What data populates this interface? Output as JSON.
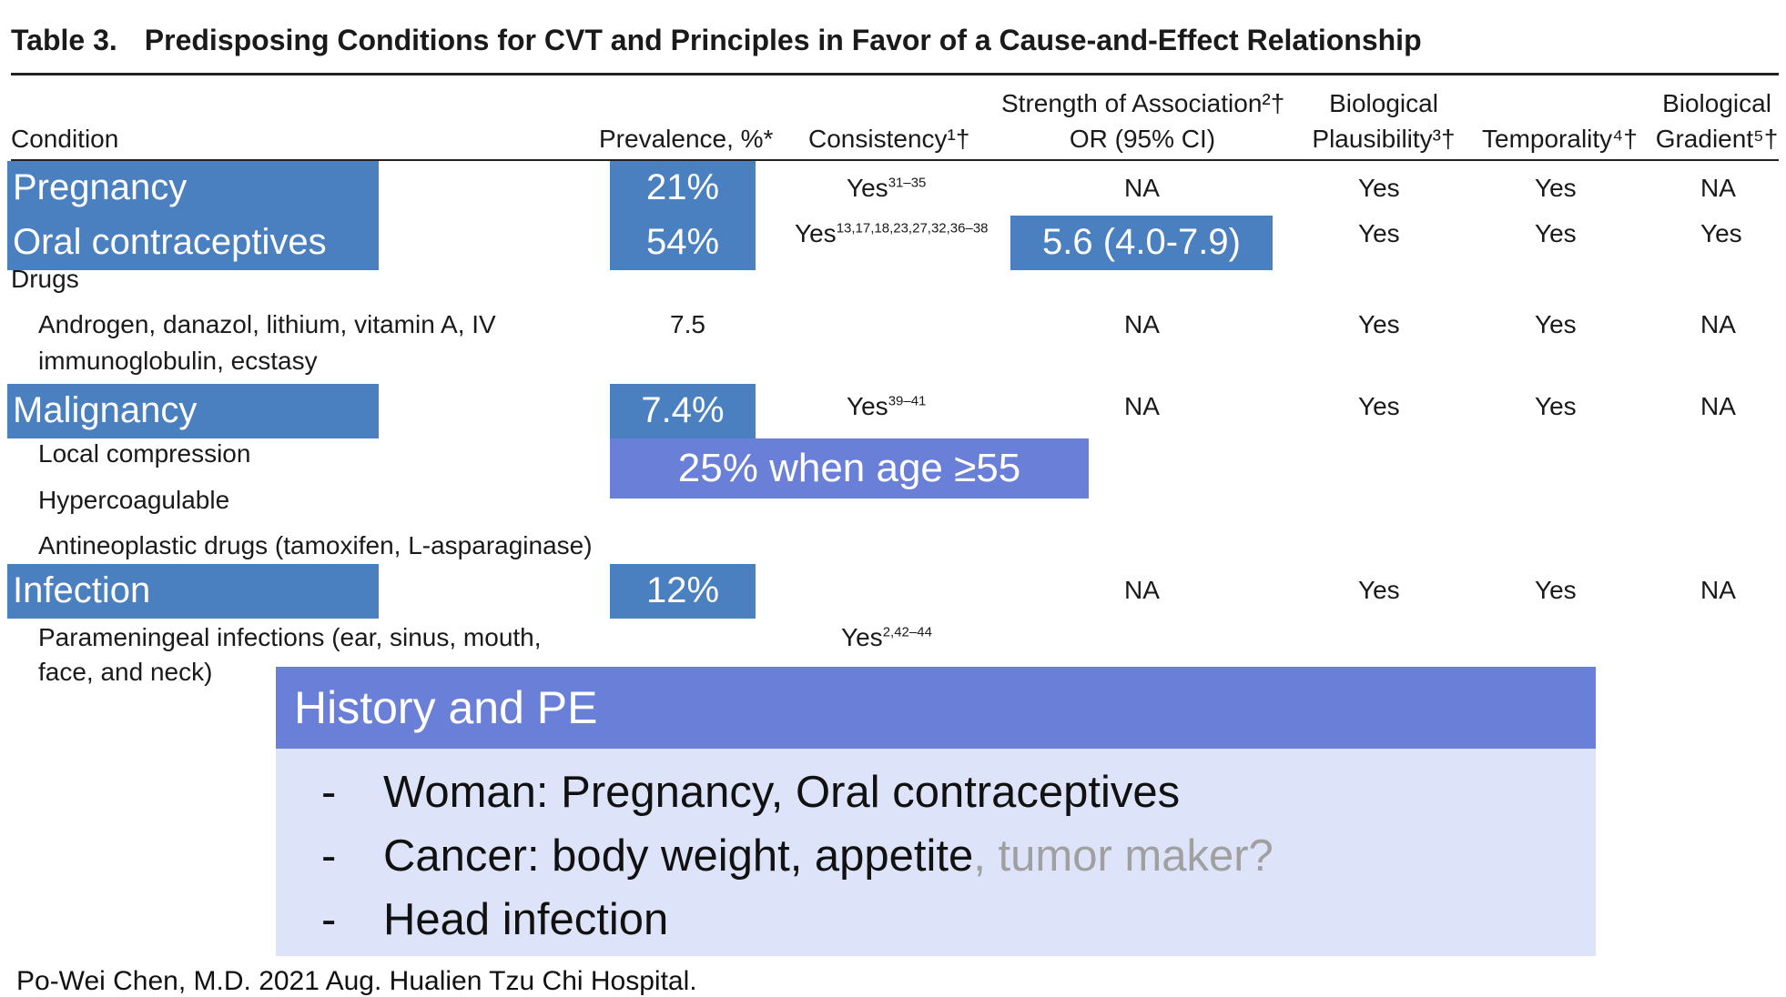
{
  "title": {
    "label": "Table 3.",
    "text": "Predisposing Conditions for CVT and Principles in Favor of a Cause-and-Effect Relationship"
  },
  "headers": {
    "condition": "Condition",
    "prevalence": "Prevalence, %*",
    "consistency": "Consistency¹†",
    "strength_line1": "Strength of Association²†",
    "strength_line2": "OR (95% CI)",
    "plausibility_line1": "Biological",
    "plausibility_line2": "Plausibility³†",
    "temporality": "Temporality⁴†",
    "gradient_line1": "Biological",
    "gradient_line2": "Gradient⁵†"
  },
  "rows": {
    "pregnancy": {
      "condition": "Pregnancy",
      "prevalence": "21%",
      "consistency": "Yes",
      "consistency_ref": "31–35",
      "strength": "NA",
      "plausibility": "Yes",
      "temporality": "Yes",
      "gradient": "NA"
    },
    "oral": {
      "condition": "Oral contraceptives",
      "prevalence": "54%",
      "consistency": "Yes",
      "consistency_ref": "13,17,18,23,27,32,36–38",
      "strength": "5.6 (4.0-7.9)",
      "plausibility": "Yes",
      "temporality": "Yes",
      "gradient": "Yes"
    },
    "drugs": {
      "condition": "Drugs"
    },
    "androgen": {
      "condition_line1": "Androgen, danazol, lithium, vitamin A, IV",
      "condition_line2": "immunoglobulin, ecstasy",
      "prevalence": "7.5",
      "strength": "NA",
      "plausibility": "Yes",
      "temporality": "Yes",
      "gradient": "NA"
    },
    "malignancy": {
      "condition": "Malignancy",
      "prevalence": "7.4%",
      "consistency": "Yes",
      "consistency_ref": "39–41",
      "strength": "NA",
      "plausibility": "Yes",
      "temporality": "Yes",
      "gradient": "NA"
    },
    "local": {
      "condition": "Local compression"
    },
    "hyper": {
      "condition": "Hypercoagulable"
    },
    "antineo": {
      "condition": "Antineoplastic drugs (tamoxifen, L-asparaginase)"
    },
    "infection": {
      "condition": "Infection",
      "prevalence": "12%",
      "strength": "NA",
      "plausibility": "Yes",
      "temporality": "Yes",
      "gradient": "NA"
    },
    "parameningeal": {
      "condition_line1": "Parameningeal infections (ear, sinus, mouth,",
      "condition_line2": "face, and neck)",
      "consistency": "Yes",
      "consistency_ref": "2,42–44"
    }
  },
  "age_note": "25% when age ≥55",
  "panel": {
    "heading": "History and PE",
    "bullets": [
      {
        "dash": "-",
        "text": "Woman: Pregnancy, Oral contraceptives"
      },
      {
        "dash": "-",
        "text": "Cancer: body weight, appetite",
        "muted": ", tumor maker?"
      },
      {
        "dash": "-",
        "text": "Head infection"
      }
    ]
  },
  "footer": "Po-Wei Chen, M.D. 2021 Aug. Hualien Tzu Chi Hospital.",
  "colors": {
    "highlight": "#4a7fc0",
    "highlight_alt": "#6a80d8",
    "panel_body": "#dde3f8"
  }
}
